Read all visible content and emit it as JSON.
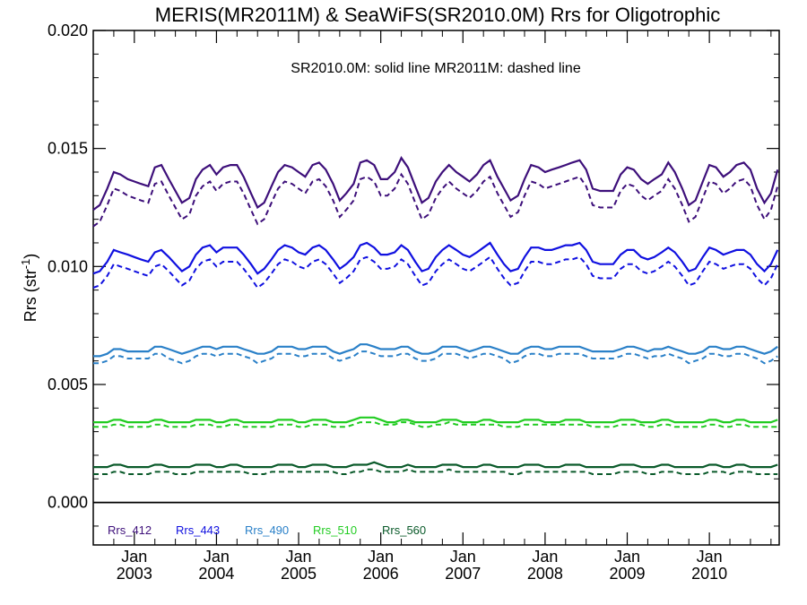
{
  "chart_data": {
    "type": "line",
    "title": "MERIS(MR2011M) & SeaWiFS(SR2010.0M)  Rrs for Oligotrophic",
    "annotation": "SR2010.0M: solid line   MR2011M: dashed line",
    "ylabel_main": "Rrs (str",
    "ylabel_sup": "-1",
    "ylabel_end": ")",
    "ylim": [
      -0.0018,
      0.02
    ],
    "xlim": [
      2002.5,
      2010.85
    ],
    "y_ticks": [
      0.0,
      0.005,
      0.01,
      0.015,
      0.02
    ],
    "y_tick_labels": [
      "0.000",
      "0.005",
      "0.010",
      "0.015",
      "0.020"
    ],
    "x_ticks": [
      {
        "pos": 2003.0,
        "month": "Jan",
        "year": "2003"
      },
      {
        "pos": 2004.0,
        "month": "Jan",
        "year": "2004"
      },
      {
        "pos": 2005.0,
        "month": "Jan",
        "year": "2005"
      },
      {
        "pos": 2006.0,
        "month": "Jan",
        "year": "2006"
      },
      {
        "pos": 2007.0,
        "month": "Jan",
        "year": "2007"
      },
      {
        "pos": 2008.0,
        "month": "Jan",
        "year": "2008"
      },
      {
        "pos": 2009.0,
        "month": "Jan",
        "year": "2009"
      },
      {
        "pos": 2010.0,
        "month": "Jan",
        "year": "2010"
      }
    ],
    "zero_line": 0.0,
    "grid": false,
    "legend_position": "bottom-left",
    "x": [
      2002.5,
      2002.58,
      2002.67,
      2002.75,
      2002.83,
      2002.92,
      2003.0,
      2003.08,
      2003.17,
      2003.25,
      2003.33,
      2003.42,
      2003.5,
      2003.58,
      2003.67,
      2003.75,
      2003.83,
      2003.92,
      2004.0,
      2004.08,
      2004.17,
      2004.25,
      2004.33,
      2004.42,
      2004.5,
      2004.58,
      2004.67,
      2004.75,
      2004.83,
      2004.92,
      2005.0,
      2005.08,
      2005.17,
      2005.25,
      2005.33,
      2005.42,
      2005.5,
      2005.58,
      2005.67,
      2005.75,
      2005.83,
      2005.92,
      2006.0,
      2006.08,
      2006.17,
      2006.25,
      2006.33,
      2006.42,
      2006.5,
      2006.58,
      2006.67,
      2006.75,
      2006.83,
      2006.92,
      2007.0,
      2007.08,
      2007.17,
      2007.25,
      2007.33,
      2007.42,
      2007.5,
      2007.58,
      2007.67,
      2007.75,
      2007.83,
      2007.92,
      2008.0,
      2008.08,
      2008.17,
      2008.25,
      2008.33,
      2008.42,
      2008.5,
      2008.58,
      2008.67,
      2008.75,
      2008.83,
      2008.92,
      2009.0,
      2009.08,
      2009.17,
      2009.25,
      2009.33,
      2009.42,
      2009.5,
      2009.58,
      2009.67,
      2009.75,
      2009.83,
      2009.92,
      2010.0,
      2010.08,
      2010.17,
      2010.25,
      2010.33,
      2010.42,
      2010.5,
      2010.58,
      2010.67,
      2010.75,
      2010.83
    ],
    "series": [
      {
        "name": "Rrs_412",
        "color": "#3d0f7a",
        "solid": [
          0.0124,
          0.0126,
          0.0133,
          0.014,
          0.0139,
          0.0137,
          0.0136,
          0.0135,
          0.0134,
          0.0142,
          0.0143,
          0.0137,
          0.0132,
          0.0127,
          0.0129,
          0.0137,
          0.0141,
          0.0143,
          0.0139,
          0.0142,
          0.0143,
          0.0143,
          0.0138,
          0.0131,
          0.0125,
          0.0127,
          0.0134,
          0.014,
          0.0143,
          0.0142,
          0.014,
          0.0138,
          0.0143,
          0.0144,
          0.0141,
          0.0135,
          0.0128,
          0.0131,
          0.0135,
          0.0144,
          0.0145,
          0.0143,
          0.0137,
          0.0137,
          0.014,
          0.0146,
          0.0142,
          0.0134,
          0.0127,
          0.0129,
          0.0136,
          0.014,
          0.0143,
          0.014,
          0.0138,
          0.0136,
          0.0139,
          0.0143,
          0.0145,
          0.0138,
          0.0133,
          0.0128,
          0.013,
          0.0137,
          0.0143,
          0.0142,
          0.014,
          0.0141,
          0.0142,
          0.0143,
          0.0144,
          0.0145,
          0.0141,
          0.0133,
          0.0132,
          0.0132,
          0.0132,
          0.0139,
          0.0142,
          0.0141,
          0.0137,
          0.0135,
          0.0137,
          0.0139,
          0.0144,
          0.014,
          0.0133,
          0.0126,
          0.0128,
          0.0136,
          0.0143,
          0.0142,
          0.0138,
          0.014,
          0.0143,
          0.0144,
          0.0141,
          0.0133,
          0.0127,
          0.0131,
          0.0141
        ]
      },
      {
        "name": "Rrs_443",
        "color": "#1010e0",
        "solid": [
          0.0097,
          0.0098,
          0.0102,
          0.0107,
          0.0106,
          0.0105,
          0.0104,
          0.0103,
          0.0102,
          0.0106,
          0.0107,
          0.0104,
          0.0101,
          0.0098,
          0.01,
          0.0105,
          0.0108,
          0.0109,
          0.0106,
          0.0108,
          0.0108,
          0.0108,
          0.0105,
          0.0101,
          0.0097,
          0.0099,
          0.0103,
          0.0107,
          0.0109,
          0.0108,
          0.0106,
          0.0105,
          0.0108,
          0.0109,
          0.0107,
          0.0103,
          0.0099,
          0.0101,
          0.0104,
          0.0109,
          0.011,
          0.0108,
          0.0105,
          0.0105,
          0.0106,
          0.0109,
          0.0107,
          0.0102,
          0.0098,
          0.0099,
          0.0104,
          0.0107,
          0.0109,
          0.0107,
          0.0105,
          0.0104,
          0.0106,
          0.0108,
          0.011,
          0.0105,
          0.0101,
          0.0098,
          0.0099,
          0.0104,
          0.0108,
          0.0108,
          0.0107,
          0.0107,
          0.0108,
          0.0109,
          0.0109,
          0.011,
          0.0107,
          0.0102,
          0.0101,
          0.0101,
          0.0101,
          0.0105,
          0.0107,
          0.0107,
          0.0104,
          0.0103,
          0.0104,
          0.0106,
          0.0108,
          0.0106,
          0.0102,
          0.0098,
          0.0099,
          0.0104,
          0.0108,
          0.0107,
          0.0105,
          0.0106,
          0.0107,
          0.0107,
          0.0105,
          0.0101,
          0.0098,
          0.0101,
          0.0107
        ]
      },
      {
        "name": "Rrs_490",
        "color": "#2a80c8",
        "solid": [
          0.0062,
          0.0062,
          0.0063,
          0.0065,
          0.0065,
          0.0064,
          0.0064,
          0.0064,
          0.0064,
          0.0066,
          0.0066,
          0.0065,
          0.0064,
          0.0063,
          0.0064,
          0.0065,
          0.0066,
          0.0066,
          0.0065,
          0.0066,
          0.0066,
          0.0066,
          0.0065,
          0.0064,
          0.0063,
          0.0063,
          0.0064,
          0.0066,
          0.0066,
          0.0066,
          0.0065,
          0.0065,
          0.0066,
          0.0066,
          0.0066,
          0.0064,
          0.0063,
          0.0064,
          0.0065,
          0.0067,
          0.0067,
          0.0066,
          0.0065,
          0.0065,
          0.0065,
          0.0066,
          0.0066,
          0.0064,
          0.0063,
          0.0063,
          0.0064,
          0.0066,
          0.0066,
          0.0066,
          0.0065,
          0.0064,
          0.0065,
          0.0066,
          0.0066,
          0.0065,
          0.0064,
          0.0063,
          0.0063,
          0.0065,
          0.0066,
          0.0066,
          0.0065,
          0.0065,
          0.0066,
          0.0066,
          0.0066,
          0.0066,
          0.0065,
          0.0064,
          0.0064,
          0.0064,
          0.0064,
          0.0065,
          0.0066,
          0.0066,
          0.0065,
          0.0064,
          0.0065,
          0.0065,
          0.0066,
          0.0065,
          0.0064,
          0.0063,
          0.0063,
          0.0064,
          0.0066,
          0.0066,
          0.0065,
          0.0065,
          0.0066,
          0.0066,
          0.0065,
          0.0064,
          0.0063,
          0.0064,
          0.0066
        ],
        "dashed": [
          0.0059,
          0.0059,
          0.006,
          0.0062,
          0.0062,
          0.0061,
          0.0061,
          0.0061,
          0.0061,
          0.0063,
          0.0063,
          0.0061,
          0.006,
          0.0059,
          0.006,
          0.0062,
          0.0063,
          0.0063,
          0.0062,
          0.0063,
          0.0063,
          0.0063,
          0.0062,
          0.0061,
          0.0059,
          0.006,
          0.0061,
          0.0063,
          0.0063,
          0.0063,
          0.0062,
          0.0062,
          0.0063,
          0.0063,
          0.0063,
          0.0061,
          0.006,
          0.0061,
          0.0062,
          0.0064,
          0.0064,
          0.0063,
          0.0062,
          0.0062,
          0.0062,
          0.0063,
          0.0063,
          0.0061,
          0.006,
          0.006,
          0.0061,
          0.0063,
          0.0063,
          0.0063,
          0.0062,
          0.0061,
          0.0062,
          0.0063,
          0.0063,
          0.0062,
          0.0061,
          0.0059,
          0.006,
          0.0062,
          0.0063,
          0.0063,
          0.0062,
          0.0062,
          0.0063,
          0.0063,
          0.0063,
          0.0063,
          0.0062,
          0.0061,
          0.0061,
          0.0061,
          0.0061,
          0.0062,
          0.0063,
          0.0063,
          0.0062,
          0.0061,
          0.0062,
          0.0062,
          0.0063,
          0.0062,
          0.0061,
          0.0059,
          0.006,
          0.0061,
          0.0063,
          0.0063,
          0.0062,
          0.0062,
          0.0063,
          0.0063,
          0.0062,
          0.0061,
          0.0059,
          0.006,
          0.0062
        ]
      },
      {
        "name": "Rrs_510",
        "color": "#22cc22",
        "solid": [
          0.0034,
          0.0034,
          0.0034,
          0.0035,
          0.0035,
          0.0034,
          0.0034,
          0.0034,
          0.0034,
          0.0035,
          0.0035,
          0.0034,
          0.0034,
          0.0034,
          0.0034,
          0.0035,
          0.0035,
          0.0035,
          0.0034,
          0.0034,
          0.0035,
          0.0035,
          0.0034,
          0.0034,
          0.0034,
          0.0034,
          0.0034,
          0.0035,
          0.0035,
          0.0035,
          0.0034,
          0.0034,
          0.0035,
          0.0035,
          0.0035,
          0.0034,
          0.0034,
          0.0034,
          0.0035,
          0.0036,
          0.0036,
          0.0036,
          0.0035,
          0.0034,
          0.0034,
          0.0035,
          0.0035,
          0.0034,
          0.0034,
          0.0034,
          0.0034,
          0.0035,
          0.0035,
          0.0035,
          0.0034,
          0.0034,
          0.0034,
          0.0035,
          0.0035,
          0.0034,
          0.0034,
          0.0034,
          0.0034,
          0.0035,
          0.0035,
          0.0035,
          0.0034,
          0.0034,
          0.0034,
          0.0035,
          0.0035,
          0.0035,
          0.0034,
          0.0034,
          0.0034,
          0.0034,
          0.0034,
          0.0035,
          0.0035,
          0.0035,
          0.0034,
          0.0034,
          0.0034,
          0.0035,
          0.0035,
          0.0034,
          0.0034,
          0.0034,
          0.0034,
          0.0034,
          0.0035,
          0.0035,
          0.0034,
          0.0034,
          0.0035,
          0.0035,
          0.0034,
          0.0034,
          0.0034,
          0.0034,
          0.0035
        ],
        "dashed": [
          0.0032,
          0.0032,
          0.0032,
          0.0033,
          0.0033,
          0.0032,
          0.0032,
          0.0032,
          0.0032,
          0.0033,
          0.0033,
          0.0032,
          0.0032,
          0.0032,
          0.0032,
          0.0033,
          0.0033,
          0.0033,
          0.0032,
          0.0032,
          0.0033,
          0.0033,
          0.0032,
          0.0032,
          0.0032,
          0.0032,
          0.0032,
          0.0033,
          0.0033,
          0.0033,
          0.0032,
          0.0032,
          0.0033,
          0.0033,
          0.0033,
          0.0032,
          0.0032,
          0.0032,
          0.0033,
          0.0034,
          0.0034,
          0.0034,
          0.0033,
          0.0033,
          0.0033,
          0.0034,
          0.0034,
          0.0033,
          0.0032,
          0.0032,
          0.0033,
          0.0033,
          0.0034,
          0.0033,
          0.0033,
          0.0033,
          0.0033,
          0.0033,
          0.0033,
          0.0033,
          0.0032,
          0.0032,
          0.0032,
          0.0033,
          0.0033,
          0.0033,
          0.0033,
          0.0033,
          0.0033,
          0.0033,
          0.0033,
          0.0033,
          0.0033,
          0.0032,
          0.0032,
          0.0032,
          0.0032,
          0.0033,
          0.0033,
          0.0033,
          0.0033,
          0.0032,
          0.0032,
          0.0033,
          0.0033,
          0.0032,
          0.0032,
          0.0032,
          0.0032,
          0.0032,
          0.0033,
          0.0033,
          0.0032,
          0.0032,
          0.0033,
          0.0033,
          0.0032,
          0.0032,
          0.0032,
          0.0032,
          0.0032
        ]
      },
      {
        "name": "Rrs_560",
        "color": "#0a5a2a",
        "solid": [
          0.0015,
          0.0015,
          0.0015,
          0.0016,
          0.0016,
          0.0015,
          0.0015,
          0.0015,
          0.0015,
          0.0016,
          0.0016,
          0.0015,
          0.0015,
          0.0015,
          0.0015,
          0.0016,
          0.0016,
          0.0016,
          0.0015,
          0.0015,
          0.0016,
          0.0016,
          0.0015,
          0.0015,
          0.0015,
          0.0015,
          0.0015,
          0.0016,
          0.0016,
          0.0016,
          0.0015,
          0.0015,
          0.0016,
          0.0016,
          0.0016,
          0.0015,
          0.0015,
          0.0015,
          0.0016,
          0.0016,
          0.0016,
          0.0017,
          0.0016,
          0.0015,
          0.0015,
          0.0015,
          0.0016,
          0.0015,
          0.0015,
          0.0015,
          0.0015,
          0.0016,
          0.0016,
          0.0016,
          0.0015,
          0.0015,
          0.0015,
          0.0016,
          0.0016,
          0.0015,
          0.0015,
          0.0015,
          0.0015,
          0.0016,
          0.0016,
          0.0016,
          0.0015,
          0.0015,
          0.0015,
          0.0016,
          0.0016,
          0.0016,
          0.0015,
          0.0015,
          0.0015,
          0.0015,
          0.0015,
          0.0016,
          0.0016,
          0.0016,
          0.0015,
          0.0015,
          0.0015,
          0.0016,
          0.0016,
          0.0015,
          0.0015,
          0.0015,
          0.0015,
          0.0015,
          0.0016,
          0.0016,
          0.0015,
          0.0015,
          0.0016,
          0.0016,
          0.0015,
          0.0015,
          0.0015,
          0.0015,
          0.0016
        ],
        "dashed": [
          0.0012,
          0.0012,
          0.0012,
          0.0013,
          0.0013,
          0.0012,
          0.0012,
          0.0012,
          0.0012,
          0.0013,
          0.0013,
          0.0013,
          0.0012,
          0.0012,
          0.0012,
          0.0013,
          0.0013,
          0.0013,
          0.0013,
          0.0013,
          0.0013,
          0.0013,
          0.0013,
          0.0012,
          0.0012,
          0.0012,
          0.0013,
          0.0013,
          0.0013,
          0.0013,
          0.0013,
          0.0013,
          0.0013,
          0.0013,
          0.0013,
          0.0013,
          0.0012,
          0.0012,
          0.0013,
          0.0013,
          0.0014,
          0.0014,
          0.0013,
          0.0013,
          0.0013,
          0.0013,
          0.0014,
          0.0013,
          0.0013,
          0.0013,
          0.0013,
          0.0013,
          0.0014,
          0.0013,
          0.0013,
          0.0013,
          0.0013,
          0.0013,
          0.0013,
          0.0013,
          0.0013,
          0.0012,
          0.0012,
          0.0013,
          0.0013,
          0.0013,
          0.0013,
          0.0013,
          0.0013,
          0.0013,
          0.0013,
          0.0013,
          0.0013,
          0.0012,
          0.0012,
          0.0012,
          0.0012,
          0.0013,
          0.0013,
          0.0013,
          0.0013,
          0.0012,
          0.0012,
          0.0013,
          0.0013,
          0.0013,
          0.0012,
          0.0012,
          0.0012,
          0.0012,
          0.0013,
          0.0013,
          0.0013,
          0.0012,
          0.0013,
          0.0013,
          0.0013,
          0.0012,
          0.0012,
          0.0012,
          0.0012
        ]
      }
    ],
    "dashed_offset_412": -0.0007,
    "dashed_offset_443": -0.0006
  }
}
